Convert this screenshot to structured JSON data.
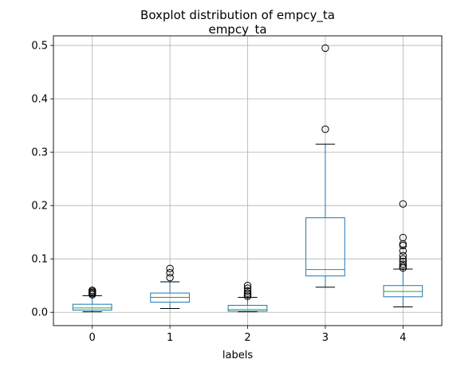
{
  "chart_data": {
    "type": "box",
    "title": "Boxplot distribution of empcy_ta",
    "subtitle": "empcy_ta",
    "xlabel": "labels",
    "ylabel": "",
    "categories": [
      "0",
      "1",
      "2",
      "3",
      "4"
    ],
    "ylim": [
      -0.025,
      0.518
    ],
    "yticks": [
      0.0,
      0.1,
      0.2,
      0.3,
      0.4,
      0.5
    ],
    "ytick_labels": [
      "0.0",
      "0.1",
      "0.2",
      "0.3",
      "0.4",
      "0.5"
    ],
    "grid": true,
    "boxes": [
      {
        "label": "0",
        "whisker_low": 0.001,
        "q1": 0.004,
        "median": 0.008,
        "q3": 0.015,
        "whisker_high": 0.031,
        "outliers": [
          0.033,
          0.035,
          0.037,
          0.039,
          0.041
        ]
      },
      {
        "label": "1",
        "whisker_low": 0.007,
        "q1": 0.019,
        "median": 0.028,
        "q3": 0.036,
        "whisker_high": 0.057,
        "outliers": [
          0.065,
          0.074,
          0.082
        ]
      },
      {
        "label": "2",
        "whisker_low": 0.001,
        "q1": 0.002,
        "median": 0.005,
        "q3": 0.013,
        "whisker_high": 0.028,
        "outliers": [
          0.03,
          0.033,
          0.036,
          0.04,
          0.045,
          0.05
        ]
      },
      {
        "label": "3",
        "whisker_low": 0.047,
        "q1": 0.068,
        "median": 0.08,
        "q3": 0.177,
        "whisker_high": 0.315,
        "outliers": [
          0.343,
          0.495
        ]
      },
      {
        "label": "4",
        "whisker_low": 0.01,
        "q1": 0.029,
        "median": 0.039,
        "q3": 0.05,
        "whisker_high": 0.081,
        "outliers": [
          0.083,
          0.086,
          0.09,
          0.095,
          0.1,
          0.106,
          0.115,
          0.125,
          0.128,
          0.14,
          0.203
        ]
      }
    ],
    "colors": {
      "box": "#1f77b4",
      "median": "#2ca02c",
      "whisker": "#1f77b4",
      "cap": "#000000",
      "grid": "#b0b0b0",
      "axes": "#000000"
    }
  }
}
